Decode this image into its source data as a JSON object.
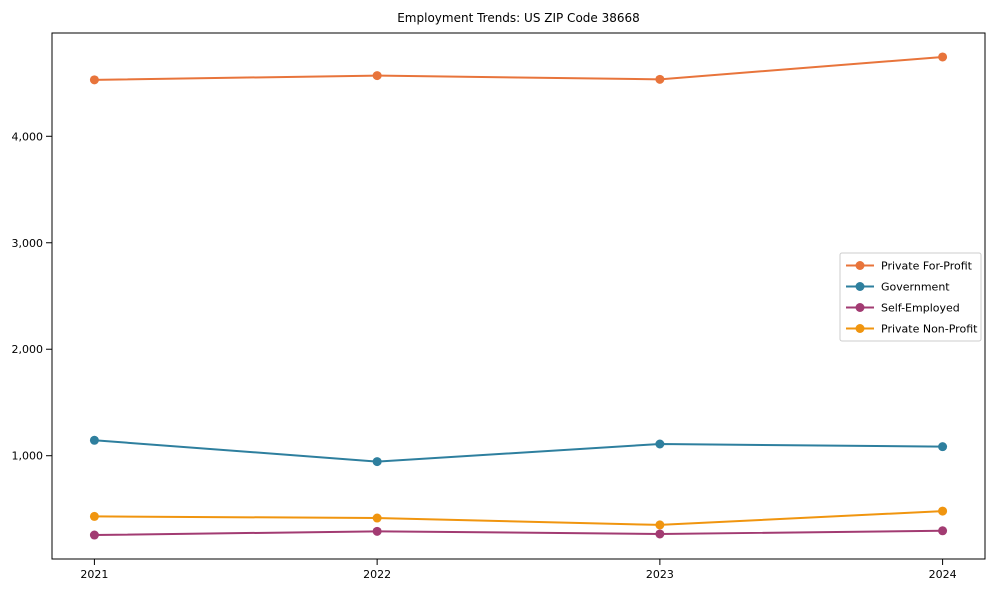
{
  "chart_data": {
    "type": "line",
    "title": "Employment Trends: US ZIP Code 38668",
    "x": [
      2021,
      2022,
      2023,
      2024
    ],
    "x_tick_labels": [
      "2021",
      "2022",
      "2023",
      "2024"
    ],
    "y_ticks": [
      1000,
      2000,
      3000,
      4000
    ],
    "y_tick_labels": [
      "1,000",
      "2,000",
      "3,000",
      "4,000"
    ],
    "xlim": [
      2020.85,
      2024.15
    ],
    "ylim": [
      30,
      4970
    ],
    "grid": false,
    "legend_position": "center right",
    "xlabel": "",
    "ylabel": "",
    "series": [
      {
        "name": "Private For-Profit",
        "color": "#e8743b",
        "values": [
          4530,
          4570,
          4535,
          4745
        ]
      },
      {
        "name": "Government",
        "color": "#2e7f9e",
        "values": [
          1145,
          945,
          1110,
          1085
        ]
      },
      {
        "name": "Self-Employed",
        "color": "#a23b72",
        "values": [
          255,
          290,
          265,
          295
        ]
      },
      {
        "name": "Private Non-Profit",
        "color": "#f0950f",
        "values": [
          430,
          415,
          350,
          480
        ]
      }
    ],
    "colors": {
      "axis": "#000000",
      "legend_border": "#cccccc",
      "background": "#ffffff"
    }
  }
}
